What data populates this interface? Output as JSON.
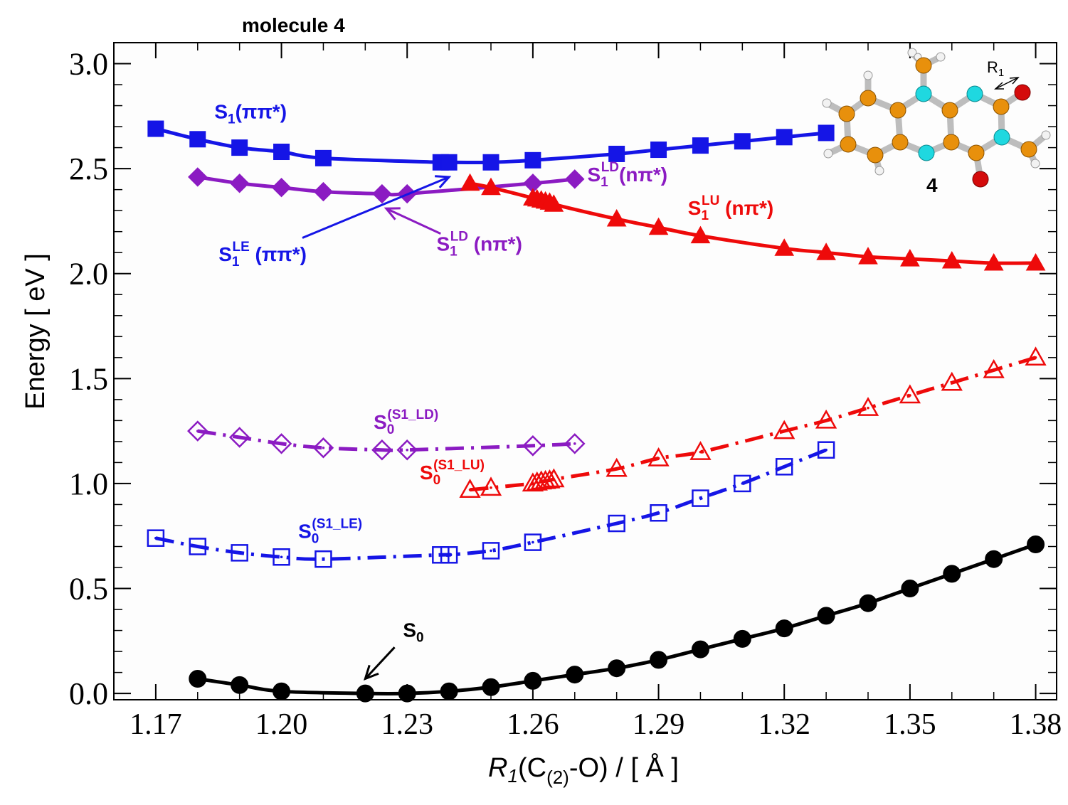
{
  "chart_data": {
    "type": "line",
    "title": "molecule 4",
    "xlabel": {
      "italic": "R",
      "sub1": "1",
      "rest": "(C",
      "sub2": "(2)",
      "tail": "-O) / [ Å ]"
    },
    "ylabel": "Energy [ eV ]",
    "xlim": [
      1.16,
      1.385
    ],
    "ylim": [
      -0.03,
      3.1
    ],
    "xticks": [
      1.17,
      1.2,
      1.23,
      1.26,
      1.29,
      1.32,
      1.35,
      1.38
    ],
    "xtick_labels": [
      "1.17",
      "1.20",
      "1.23",
      "1.26",
      "1.29",
      "1.32",
      "1.35",
      "1.38"
    ],
    "yticks": [
      0.0,
      0.5,
      1.0,
      1.5,
      2.0,
      2.5,
      3.0
    ],
    "ytick_labels": [
      "0.0",
      "0.5",
      "1.0",
      "1.5",
      "2.0",
      "2.5",
      "3.0"
    ],
    "series": [
      {
        "name": "S1(ππ*)",
        "color": "#1515e6",
        "marker": "square",
        "filled": true,
        "dash": "solid",
        "x": [
          1.17,
          1.18,
          1.19,
          1.2,
          1.21,
          1.238,
          1.24,
          1.25,
          1.26,
          1.28,
          1.29,
          1.3,
          1.31,
          1.32,
          1.33
        ],
        "y": [
          2.69,
          2.64,
          2.6,
          2.58,
          2.55,
          2.53,
          2.53,
          2.53,
          2.54,
          2.57,
          2.59,
          2.61,
          2.63,
          2.65,
          2.67
        ]
      },
      {
        "name": "S1LD(nπ*)",
        "color": "#8b1bc2",
        "marker": "diamond",
        "filled": true,
        "dash": "solid",
        "x": [
          1.18,
          1.19,
          1.2,
          1.21,
          1.224,
          1.23,
          1.26,
          1.27
        ],
        "y": [
          2.46,
          2.43,
          2.41,
          2.39,
          2.38,
          2.38,
          2.43,
          2.45
        ]
      },
      {
        "name": "S1LU(nπ*)",
        "color": "#ee0a0a",
        "marker": "triangle",
        "filled": true,
        "dash": "solid",
        "x": [
          1.245,
          1.25,
          1.26,
          1.261,
          1.262,
          1.263,
          1.264,
          1.265,
          1.28,
          1.29,
          1.3,
          1.32,
          1.33,
          1.34,
          1.35,
          1.36,
          1.37,
          1.38
        ],
        "y": [
          2.43,
          2.41,
          2.36,
          2.355,
          2.35,
          2.345,
          2.34,
          2.33,
          2.26,
          2.22,
          2.18,
          2.12,
          2.1,
          2.08,
          2.07,
          2.06,
          2.05,
          2.05
        ]
      },
      {
        "name": "S0(S1_LD)",
        "color": "#8b1bc2",
        "marker": "diamond",
        "filled": false,
        "dash": "dashdot",
        "x": [
          1.18,
          1.19,
          1.2,
          1.21,
          1.224,
          1.23,
          1.26,
          1.27
        ],
        "y": [
          1.25,
          1.22,
          1.19,
          1.17,
          1.16,
          1.16,
          1.18,
          1.19
        ]
      },
      {
        "name": "S0(S1_LU)",
        "color": "#ee0a0a",
        "marker": "triangle",
        "filled": false,
        "dash": "dashdot",
        "x": [
          1.245,
          1.25,
          1.26,
          1.261,
          1.262,
          1.263,
          1.264,
          1.265,
          1.28,
          1.29,
          1.3,
          1.32,
          1.33,
          1.34,
          1.35,
          1.36,
          1.37,
          1.38
        ],
        "y": [
          0.97,
          0.98,
          1.0,
          1.005,
          1.01,
          1.012,
          1.015,
          1.02,
          1.07,
          1.12,
          1.15,
          1.25,
          1.3,
          1.36,
          1.42,
          1.48,
          1.54,
          1.6
        ]
      },
      {
        "name": "S0(S1_LE)",
        "color": "#1515e6",
        "marker": "square",
        "filled": false,
        "dash": "dashdot",
        "x": [
          1.17,
          1.18,
          1.19,
          1.2,
          1.21,
          1.238,
          1.24,
          1.25,
          1.26,
          1.28,
          1.29,
          1.3,
          1.31,
          1.32,
          1.33
        ],
        "y": [
          0.74,
          0.7,
          0.67,
          0.65,
          0.64,
          0.66,
          0.66,
          0.68,
          0.72,
          0.81,
          0.86,
          0.93,
          1.0,
          1.08,
          1.16
        ]
      },
      {
        "name": "S0",
        "color": "#000000",
        "marker": "circle",
        "filled": true,
        "dash": "solid",
        "x": [
          1.18,
          1.19,
          1.2,
          1.22,
          1.23,
          1.24,
          1.25,
          1.26,
          1.27,
          1.28,
          1.29,
          1.3,
          1.31,
          1.32,
          1.33,
          1.34,
          1.35,
          1.36,
          1.37,
          1.38
        ],
        "y": [
          0.07,
          0.04,
          0.01,
          0.0,
          0.0,
          0.01,
          0.03,
          0.06,
          0.09,
          0.12,
          0.16,
          0.21,
          0.26,
          0.31,
          0.37,
          0.43,
          0.5,
          0.57,
          0.64,
          0.71
        ]
      }
    ],
    "annotations": [
      {
        "id": "s1pp",
        "base": "S",
        "sub": "1",
        "sup": "",
        "rest": "(ππ*)",
        "color": "#1515e6",
        "x": 1.184,
        "y": 2.74
      },
      {
        "id": "s1ld_right",
        "base": "S",
        "sub": "1",
        "sup": "LD",
        "rest": "(nπ*)",
        "color": "#8b1bc2",
        "x": 1.273,
        "y": 2.44
      },
      {
        "id": "s1lu",
        "base": "S",
        "sub": "1",
        "sup": "LU",
        "rest": " (nπ*)",
        "color": "#ee0a0a",
        "x": 1.297,
        "y": 2.28
      },
      {
        "id": "s1le",
        "base": "S",
        "sub": "1",
        "sup": "LE",
        "rest": " (ππ*)",
        "color": "#1515e6",
        "x": 1.185,
        "y": 2.06
      },
      {
        "id": "s1ld_lower",
        "base": "S",
        "sub": "1",
        "sup": "LD",
        "rest": " (nπ*)",
        "color": "#8b1bc2",
        "x": 1.237,
        "y": 2.11
      },
      {
        "id": "s0ld",
        "base": "S",
        "sub": "0",
        "sup": "(S1_LD)",
        "rest": "",
        "color": "#8b1bc2",
        "x": 1.222,
        "y": 1.26
      },
      {
        "id": "s0lu",
        "base": "S",
        "sub": "0",
        "sup": "(S1_LU)",
        "rest": "",
        "color": "#ee0a0a",
        "x": 1.233,
        "y": 1.02
      },
      {
        "id": "s0le",
        "base": "S",
        "sub": "0",
        "sup": "(S1_LE)",
        "rest": "",
        "color": "#1515e6",
        "x": 1.204,
        "y": 0.74
      },
      {
        "id": "s0",
        "base": "S",
        "sub": "0",
        "sup": "",
        "rest": "",
        "color": "#000000",
        "x": 1.229,
        "y": 0.27
      }
    ],
    "arrows": [
      {
        "id": "arrow-s1le",
        "color": "#1515e6",
        "from": [
          1.205,
          2.17
        ],
        "to": [
          1.24,
          2.46
        ]
      },
      {
        "id": "arrow-s1ld",
        "color": "#8b1bc2",
        "from": [
          1.238,
          2.19
        ],
        "to": [
          1.225,
          2.31
        ]
      },
      {
        "id": "arrow-s0",
        "color": "#000000",
        "from": [
          1.227,
          0.22
        ],
        "to": [
          1.22,
          0.07
        ]
      }
    ]
  },
  "inset": {
    "label": "4",
    "bond_label_base": "R",
    "bond_label_sub": "1"
  }
}
